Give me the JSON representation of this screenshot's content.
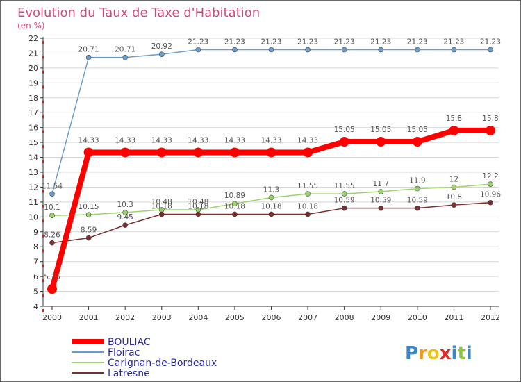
{
  "chart_data": {
    "type": "line",
    "title": "Evolution du Taux de Taxe d'Habitation",
    "subtitle": "(en %)",
    "categories": [
      "2000",
      "2001",
      "2002",
      "2003",
      "2004",
      "2005",
      "2006",
      "2007",
      "2008",
      "2009",
      "2010",
      "2011",
      "2012"
    ],
    "ylim": [
      4,
      22
    ],
    "yticks": [
      4,
      5,
      6,
      7,
      8,
      9,
      10,
      11,
      12,
      13,
      14,
      15,
      16,
      17,
      18,
      19,
      20,
      21,
      22
    ],
    "grid": "horizontal",
    "legend_position": "bottom-left",
    "series": [
      {
        "name": "BOULIAC",
        "color": "#ff0000",
        "emphasis": true,
        "values": [
          5.16,
          14.33,
          14.33,
          14.33,
          14.33,
          14.33,
          14.33,
          14.33,
          15.05,
          15.05,
          15.05,
          15.8,
          15.8
        ],
        "labels": [
          "5.16",
          "14.33",
          "14.33",
          "14.33",
          "14.33",
          "14.33",
          "14.33",
          "14.33",
          "15.05",
          "15.05",
          "15.05",
          "15.8",
          "15.8"
        ]
      },
      {
        "name": "Floirac",
        "color": "#6b9dc8",
        "values": [
          11.54,
          20.71,
          20.71,
          20.92,
          21.23,
          21.23,
          21.23,
          21.23,
          21.23,
          21.23,
          21.23,
          21.23,
          21.23
        ],
        "labels": [
          "11.54",
          "20.71",
          "20.71",
          "20.92",
          "21.23",
          "21.23",
          "21.23",
          "21.23",
          "21.23",
          "21.23",
          "21.23",
          "21.23",
          "21.23"
        ]
      },
      {
        "name": "Carignan-de-Bordeaux",
        "color": "#9ad46a",
        "values": [
          10.1,
          10.15,
          10.3,
          10.48,
          10.48,
          10.89,
          11.3,
          11.55,
          11.55,
          11.7,
          11.9,
          12,
          12.2
        ],
        "labels": [
          "10.1",
          "10.15",
          "10.3",
          "10.48",
          "10.48",
          "10.89",
          "11.3",
          "11.55",
          "11.55",
          "11.7",
          "11.9",
          "12",
          "12.2"
        ]
      },
      {
        "name": "Latresne",
        "color": "#7a2e2e",
        "values": [
          8.26,
          8.59,
          9.45,
          10.18,
          10.18,
          10.18,
          10.18,
          10.18,
          10.59,
          10.59,
          10.59,
          10.8,
          10.96
        ],
        "labels": [
          "8.26",
          "8.59",
          "9.45",
          "10.18",
          "10.18",
          "10.18",
          "10.18",
          "10.18",
          "10.59",
          "10.59",
          "10.59",
          "10.8",
          "10.96"
        ]
      }
    ]
  },
  "watermark": {
    "letters": [
      "P",
      "r",
      "o",
      "x",
      "i",
      "t",
      "i"
    ],
    "colors": [
      "#3a86c8",
      "#f29a1f",
      "#e8c21a",
      "#e02a2a",
      "#3a86c8",
      "#8bc53f",
      "#3a86c8"
    ]
  },
  "colors": {
    "axis": "#333333",
    "grid": "#d8d8d8",
    "title": "#d04a7a",
    "tick": "#333333",
    "legend_text": "#2a2aa8",
    "point_label": "#555555"
  }
}
